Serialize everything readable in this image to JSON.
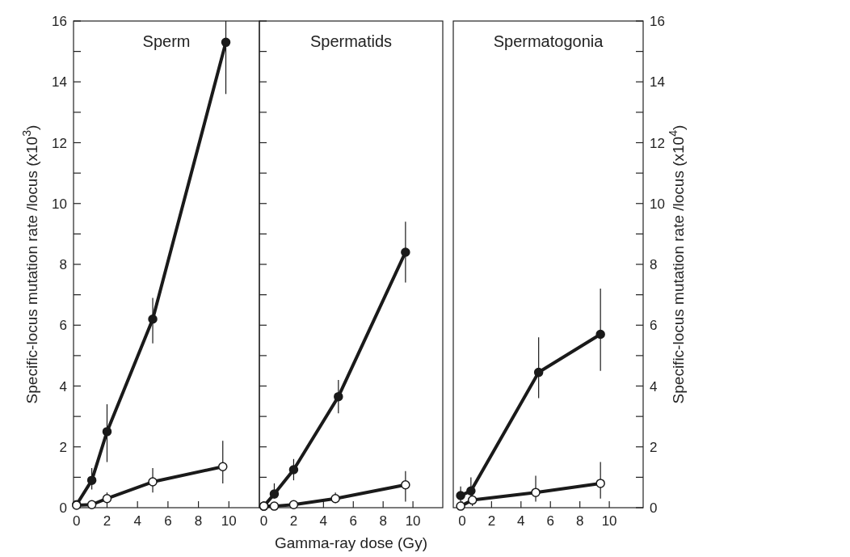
{
  "chart_data": [
    {
      "type": "line",
      "title": "Sperm",
      "ylabel": "Specific-locus mutation rate /locus (x10$^{3}$)",
      "xlim": [
        -0.2,
        12
      ],
      "xticks": [
        0,
        2,
        4,
        6,
        8,
        10
      ],
      "ylim": [
        0,
        16
      ],
      "yticks": [
        0,
        {
          "value": 1,
          "label": null
        },
        2,
        {
          "value": 3,
          "label": null
        },
        4,
        {
          "value": 5,
          "label": null
        },
        6,
        {
          "value": 7,
          "label": null
        },
        8,
        {
          "value": 9,
          "label": null
        },
        10,
        {
          "value": 11,
          "label": null
        },
        12,
        {
          "value": 13,
          "label": null
        },
        14,
        {
          "value": 15,
          "label": null
        },
        16
      ],
      "marker": "circle",
      "series": [
        {
          "color": "#1a1a1a",
          "x": [
            0,
            1,
            2,
            5,
            9.8
          ],
          "values": [
            0.1,
            0.9,
            2.5,
            6.2,
            15.3
          ],
          "errors": [
            null,
            [
              0.6,
              1.3
            ],
            [
              1.5,
              3.4
            ],
            [
              5.4,
              6.9
            ],
            [
              13.6,
              16
            ]
          ]
        },
        {
          "color": "#1a1a1a",
          "x": [
            0,
            1,
            2,
            5,
            9.6
          ],
          "values": [
            0.08,
            0.1,
            0.3,
            0.85,
            1.35
          ],
          "errors": [
            null,
            null,
            [
              0.15,
              0.5
            ],
            [
              0.5,
              1.3
            ],
            [
              0.8,
              2.2
            ]
          ]
        }
      ]
    },
    {
      "type": "line",
      "title": "Spermatids",
      "xlabel": "Gamma-ray dose (Gy)",
      "xlim": [
        -0.3,
        12
      ],
      "xticks": [
        0,
        2,
        4,
        6,
        8,
        10
      ],
      "ylim": [
        0,
        16
      ],
      "yticks": [
        0,
        {
          "value": 1,
          "label": null
        },
        2,
        {
          "value": 3,
          "label": null
        },
        4,
        {
          "value": 5,
          "label": null
        },
        6,
        {
          "value": 7,
          "label": null
        },
        8,
        {
          "value": 9,
          "label": null
        },
        10,
        {
          "value": 11,
          "label": null
        },
        12,
        {
          "value": 13,
          "label": null
        },
        14,
        {
          "value": 15,
          "label": null
        },
        16
      ],
      "tick_labels": "x",
      "marker": "circle",
      "series": [
        {
          "color": "#1a1a1a",
          "x": [
            0,
            0.7,
            2,
            5,
            9.5
          ],
          "values": [
            0.05,
            0.45,
            1.25,
            3.65,
            8.4
          ],
          "errors": [
            null,
            [
              0.3,
              0.8
            ],
            [
              0.9,
              1.6
            ],
            [
              3.1,
              4.2
            ],
            [
              7.4,
              9.4
            ]
          ]
        },
        {
          "color": "#1a1a1a",
          "x": [
            0,
            0.7,
            2,
            4.8,
            9.5
          ],
          "values": [
            0.05,
            0.05,
            0.1,
            0.3,
            0.75
          ],
          "errors": [
            null,
            null,
            null,
            [
              0.15,
              0.5
            ],
            [
              0.2,
              1.2
            ]
          ]
        }
      ]
    },
    {
      "type": "line",
      "title": "Spermatogonia",
      "y2label": "Specific-locus mutation rate /locus (x10$^{4}$)",
      "xlim": [
        -0.6,
        12.3
      ],
      "xticks": [
        0,
        2,
        4,
        6,
        8,
        10
      ],
      "y2lim": [
        0,
        16
      ],
      "y2ticks": [
        0,
        {
          "value": 1,
          "label": null
        },
        2,
        {
          "value": 3,
          "label": null
        },
        4,
        {
          "value": 5,
          "label": null
        },
        6,
        {
          "value": 7,
          "label": null
        },
        8,
        {
          "value": 9,
          "label": null
        },
        10,
        {
          "value": 11,
          "label": null
        },
        12,
        {
          "value": 13,
          "label": null
        },
        14,
        {
          "value": 15,
          "label": null
        },
        16
      ],
      "marker": "circle",
      "series": [
        {
          "color": "#1a1a1a",
          "axis": "y2",
          "x": [
            -0.1,
            0.6,
            5.2,
            9.4
          ],
          "values": [
            0.4,
            0.55,
            4.45,
            5.7
          ],
          "errors": [
            [
              0.1,
              0.7
            ],
            [
              0.2,
              1.0
            ],
            [
              3.6,
              5.6
            ],
            [
              4.5,
              7.2
            ]
          ]
        },
        {
          "color": "#1a1a1a",
          "axis": "y2",
          "x": [
            -0.1,
            0.7,
            5,
            9.4
          ],
          "values": [
            0.05,
            0.25,
            0.5,
            0.8
          ],
          "errors": [
            null,
            [
              0.05,
              0.5
            ],
            [
              0.2,
              1.05
            ],
            [
              0.3,
              1.5
            ]
          ]
        }
      ]
    }
  ]
}
